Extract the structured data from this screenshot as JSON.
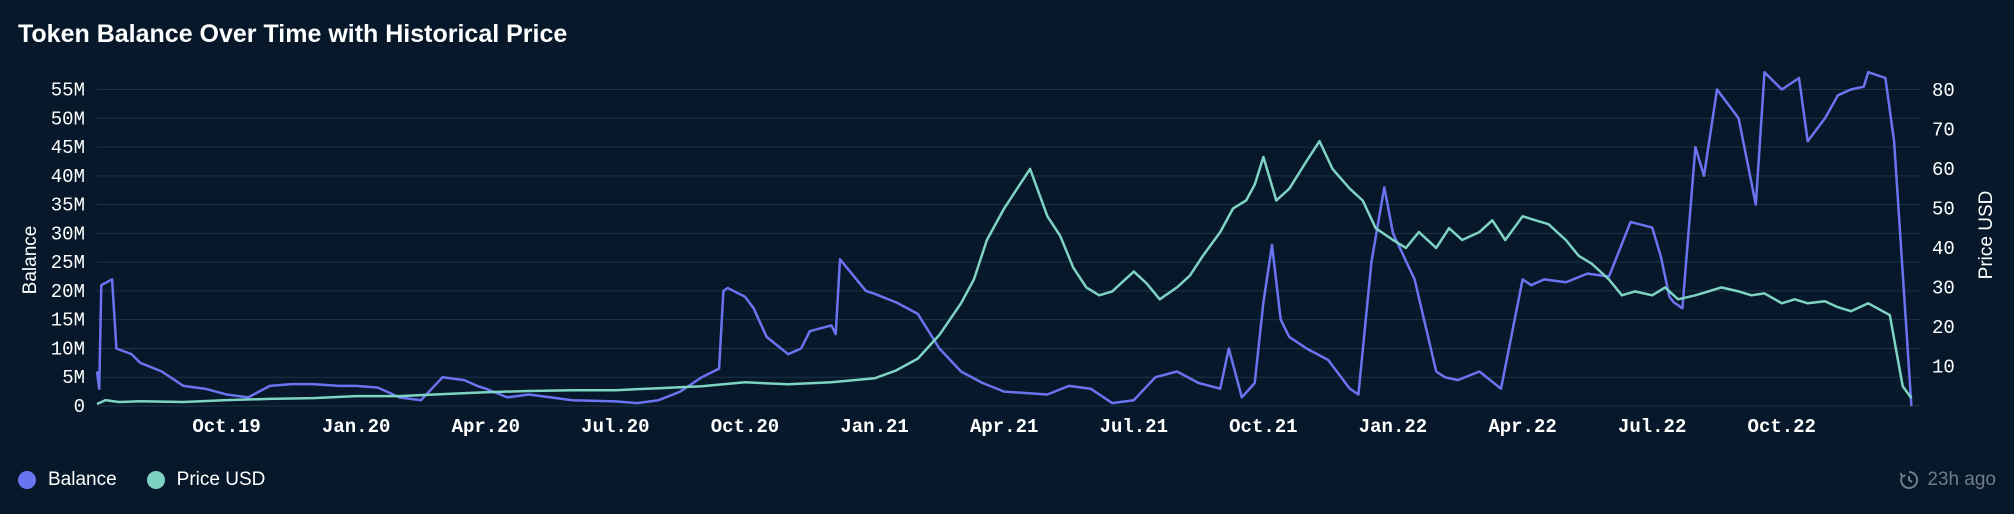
{
  "header": {
    "title": "Token Balance Over Time with Historical Price"
  },
  "legend": [
    {
      "label": "Balance",
      "color": "#6b74f0"
    },
    {
      "label": "Price USD",
      "color": "#7fd3c3"
    }
  ],
  "footer": {
    "updated": "23h ago",
    "icon": "clock-history-icon"
  },
  "chart_data": {
    "type": "line",
    "title": "Token Balance Over Time with Historical Price",
    "ylabel": "Balance",
    "y2label": "Price USD",
    "ylim": [
      0,
      57000000
    ],
    "y2lim": [
      0,
      83
    ],
    "xlim": [
      0,
      42.2
    ],
    "grid": true,
    "legend_position": "bottom-left",
    "x_tick_labels": [
      "Oct.19",
      "Jan.20",
      "Apr.20",
      "Jul.20",
      "Oct.20",
      "Jan.21",
      "Apr.21",
      "Jul.21",
      "Oct.21",
      "Jan.22",
      "Apr.22",
      "Jul.22",
      "Oct.22"
    ],
    "x_tick_positions": [
      3,
      6,
      9,
      12,
      15,
      18,
      21,
      24,
      27,
      30,
      33,
      36,
      39
    ],
    "y_tick_labels": [
      "0",
      "5M",
      "10M",
      "15M",
      "20M",
      "25M",
      "30M",
      "35M",
      "40M",
      "45M",
      "50M",
      "55M"
    ],
    "y_ticks": [
      0,
      5000000,
      10000000,
      15000000,
      20000000,
      25000000,
      30000000,
      35000000,
      40000000,
      45000000,
      50000000,
      55000000
    ],
    "y2_tick_labels": [
      "10",
      "20",
      "30",
      "40",
      "50",
      "60",
      "70",
      "80"
    ],
    "y2_ticks": [
      10,
      20,
      30,
      40,
      50,
      60,
      70,
      80
    ],
    "series": [
      {
        "name": "Balance",
        "axis": "left",
        "color": "#6b74f0",
        "x": [
          0.0,
          0.05,
          0.1,
          0.35,
          0.45,
          0.8,
          1.0,
          1.5,
          2.0,
          2.5,
          3.0,
          3.5,
          4.0,
          4.5,
          5.0,
          5.6,
          6.0,
          6.5,
          7.0,
          7.5,
          8.0,
          8.5,
          8.8,
          9.0,
          9.5,
          10.0,
          10.5,
          11.0,
          12.0,
          12.5,
          13.0,
          13.5,
          14.0,
          14.4,
          14.5,
          14.6,
          15.0,
          15.2,
          15.5,
          16.0,
          16.3,
          16.5,
          17.0,
          17.1,
          17.2,
          17.8,
          18.0,
          18.5,
          19.0,
          19.5,
          20.0,
          20.5,
          21.0,
          22.0,
          22.5,
          23.0,
          23.5,
          24.0,
          24.5,
          25.0,
          25.5,
          26.0,
          26.2,
          26.5,
          26.8,
          27.0,
          27.2,
          27.4,
          27.6,
          28.0,
          28.5,
          29.0,
          29.2,
          29.5,
          29.8,
          30.0,
          30.5,
          31.0,
          31.2,
          31.5,
          32.0,
          32.5,
          33.0,
          33.2,
          33.5,
          34.0,
          34.5,
          35.0,
          35.5,
          36.0,
          36.2,
          36.4,
          36.5,
          36.7,
          37.0,
          37.2,
          37.5,
          38.0,
          38.4,
          38.6,
          39.0,
          39.4,
          39.6,
          40.0,
          40.3,
          40.6,
          40.9,
          41.0,
          41.4,
          41.6,
          42.0
        ],
        "y": [
          6000000,
          3000000,
          21000000,
          22000000,
          10000000,
          9000000,
          7500000,
          6000000,
          3500000,
          3000000,
          2000000,
          1500000,
          3500000,
          3800000,
          3800000,
          3500000,
          3500000,
          3200000,
          1500000,
          1000000,
          5000000,
          4500000,
          3500000,
          3000000,
          1500000,
          2000000,
          1500000,
          1000000,
          800000,
          500000,
          1000000,
          2500000,
          5000000,
          6500000,
          20000000,
          20500000,
          19000000,
          17000000,
          12000000,
          9000000,
          10000000,
          13000000,
          14000000,
          12500000,
          25500000,
          20000000,
          19500000,
          18000000,
          16000000,
          10000000,
          6000000,
          4000000,
          2500000,
          2000000,
          3500000,
          3000000,
          500000,
          1000000,
          5000000,
          6000000,
          4000000,
          3000000,
          10000000,
          1500000,
          4000000,
          18000000,
          28000000,
          15000000,
          12000000,
          10000000,
          8000000,
          3000000,
          2000000,
          25000000,
          38000000,
          30000000,
          22000000,
          6000000,
          5000000,
          4500000,
          6000000,
          3000000,
          22000000,
          21000000,
          22000000,
          21500000,
          23000000,
          22500000,
          32000000,
          31000000,
          26000000,
          19000000,
          18000000,
          17000000,
          45000000,
          40000000,
          55000000,
          50000000,
          35000000,
          58000000,
          55000000,
          57000000,
          46000000,
          50000000,
          54000000,
          55000000,
          55500000,
          58000000,
          57000000,
          46000000,
          0
        ]
      },
      {
        "name": "Price USD",
        "axis": "right",
        "color": "#7fd3c3",
        "x": [
          0.0,
          0.2,
          0.5,
          1.0,
          2.0,
          3.0,
          4.0,
          5.0,
          6.0,
          7.0,
          8.0,
          9.0,
          10.0,
          11.0,
          12.0,
          13.0,
          14.0,
          15.0,
          16.0,
          17.0,
          17.5,
          18.0,
          18.5,
          19.0,
          19.5,
          20.0,
          20.3,
          20.6,
          21.0,
          21.3,
          21.6,
          22.0,
          22.3,
          22.6,
          22.9,
          23.2,
          23.5,
          24.0,
          24.3,
          24.6,
          25.0,
          25.3,
          25.6,
          26.0,
          26.3,
          26.6,
          26.8,
          27.0,
          27.3,
          27.6,
          28.0,
          28.3,
          28.6,
          29.0,
          29.3,
          29.6,
          30.0,
          30.3,
          30.6,
          31.0,
          31.3,
          31.6,
          32.0,
          32.3,
          32.6,
          33.0,
          33.3,
          33.6,
          34.0,
          34.3,
          34.6,
          35.0,
          35.3,
          35.6,
          36.0,
          36.3,
          36.6,
          37.0,
          37.3,
          37.6,
          38.0,
          38.3,
          38.6,
          39.0,
          39.3,
          39.6,
          40.0,
          40.3,
          40.6,
          41.0,
          41.5,
          41.8,
          42.0
        ],
        "y": [
          0.5,
          1.5,
          1.0,
          1.2,
          1.0,
          1.5,
          1.8,
          2.0,
          2.5,
          2.5,
          3.0,
          3.5,
          3.8,
          4.0,
          4.0,
          4.5,
          5.0,
          6.0,
          5.5,
          6.0,
          6.5,
          7.0,
          9.0,
          12.0,
          18.0,
          26.0,
          32.0,
          42.0,
          50.0,
          55.0,
          60.0,
          48.0,
          43.0,
          35.0,
          30.0,
          28.0,
          29.0,
          34.0,
          31.0,
          27.0,
          30.0,
          33.0,
          38.0,
          44.0,
          50.0,
          52.0,
          56.0,
          63.0,
          52.0,
          55.0,
          62.0,
          67.0,
          60.0,
          55.0,
          52.0,
          45.0,
          42.0,
          40.0,
          44.0,
          40.0,
          45.0,
          42.0,
          44.0,
          47.0,
          42.0,
          48.0,
          47.0,
          46.0,
          42.0,
          38.0,
          36.0,
          32.0,
          28.0,
          29.0,
          28.0,
          30.0,
          27.0,
          28.0,
          29.0,
          30.0,
          29.0,
          28.0,
          28.5,
          26.0,
          27.0,
          26.0,
          26.5,
          25.0,
          24.0,
          26.0,
          23.0,
          5.0,
          2.0
        ]
      }
    ]
  }
}
